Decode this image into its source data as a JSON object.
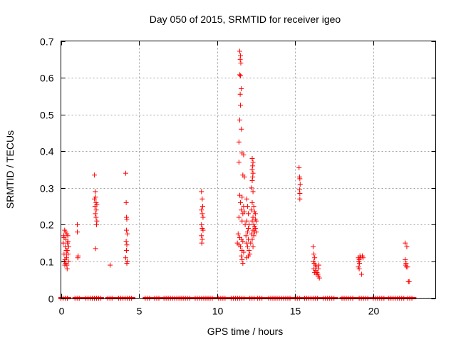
{
  "chart_data": {
    "type": "scatter",
    "title": "Day 050 of 2015, SRMTID for receiver igeo",
    "xlabel": "GPS time / hours",
    "ylabel": "SRMTID / TECUs",
    "xlim": [
      0,
      24
    ],
    "ylim": [
      0,
      0.7
    ],
    "xticks": [
      0,
      5,
      10,
      15,
      20
    ],
    "xtick_labels": [
      "0",
      "5",
      "10",
      "15",
      "20"
    ],
    "yticks": [
      0,
      0.1,
      0.2,
      0.3,
      0.4,
      0.5,
      0.6,
      0.7
    ],
    "ytick_labels": [
      "0",
      "0.1",
      "0.2",
      "0.3",
      "0.4",
      "0.5",
      "0.6",
      "0.7"
    ],
    "grid": true,
    "marker": "+",
    "marker_color": "#ff0000",
    "series": [
      {
        "name": "SRMTID",
        "points": [
          [
            0.15,
            0.15
          ],
          [
            0.18,
            0.17
          ],
          [
            0.2,
            0.12
          ],
          [
            0.22,
            0.1
          ],
          [
            0.25,
            0.09
          ],
          [
            0.28,
            0.14
          ],
          [
            0.3,
            0.18
          ],
          [
            0.32,
            0.16
          ],
          [
            0.34,
            0.13
          ],
          [
            0.36,
            0.11
          ],
          [
            0.38,
            0.09
          ],
          [
            0.4,
            0.08
          ],
          [
            0.42,
            0.15
          ],
          [
            0.44,
            0.17
          ],
          [
            0.46,
            0.12
          ],
          [
            0.48,
            0.1
          ],
          [
            0.5,
            0.14
          ],
          [
            0.24,
            0.185
          ],
          [
            0.2,
            0.165
          ],
          [
            0.26,
            0.105
          ],
          [
            0.3,
            0.095
          ],
          [
            0.35,
            0.12
          ],
          [
            0.4,
            0.13
          ],
          [
            0.45,
            0.155
          ],
          [
            0.38,
            0.175
          ],
          [
            1.05,
            0.2
          ],
          [
            1.05,
            0.18
          ],
          [
            1.08,
            0.11
          ],
          [
            1.1,
            0.115
          ],
          [
            2.15,
            0.335
          ],
          [
            2.2,
            0.29
          ],
          [
            2.22,
            0.275
          ],
          [
            2.25,
            0.26
          ],
          [
            2.18,
            0.25
          ],
          [
            2.2,
            0.23
          ],
          [
            2.25,
            0.22
          ],
          [
            2.3,
            0.21
          ],
          [
            2.28,
            0.2
          ],
          [
            2.22,
            0.135
          ],
          [
            2.15,
            0.27
          ],
          [
            2.3,
            0.255
          ],
          [
            2.26,
            0.24
          ],
          [
            3.15,
            0.09
          ],
          [
            4.15,
            0.34
          ],
          [
            4.18,
            0.26
          ],
          [
            4.2,
            0.22
          ],
          [
            4.22,
            0.215
          ],
          [
            4.2,
            0.185
          ],
          [
            4.25,
            0.175
          ],
          [
            4.18,
            0.155
          ],
          [
            4.22,
            0.145
          ],
          [
            4.2,
            0.13
          ],
          [
            4.15,
            0.11
          ],
          [
            4.25,
            0.1
          ],
          [
            4.22,
            0.095
          ],
          [
            9.0,
            0.29
          ],
          [
            9.05,
            0.27
          ],
          [
            9.08,
            0.25
          ],
          [
            9.0,
            0.24
          ],
          [
            9.05,
            0.23
          ],
          [
            9.1,
            0.22
          ],
          [
            9.0,
            0.2
          ],
          [
            9.05,
            0.19
          ],
          [
            9.1,
            0.185
          ],
          [
            9.0,
            0.17
          ],
          [
            9.05,
            0.16
          ],
          [
            9.02,
            0.15
          ],
          [
            11.45,
            0.672
          ],
          [
            11.5,
            0.66
          ],
          [
            11.48,
            0.65
          ],
          [
            11.52,
            0.64
          ],
          [
            11.45,
            0.608
          ],
          [
            11.5,
            0.605
          ],
          [
            11.55,
            0.57
          ],
          [
            11.48,
            0.555
          ],
          [
            11.5,
            0.525
          ],
          [
            11.45,
            0.485
          ],
          [
            11.55,
            0.46
          ],
          [
            11.4,
            0.425
          ],
          [
            11.6,
            0.395
          ],
          [
            11.7,
            0.39
          ],
          [
            11.4,
            0.37
          ],
          [
            11.65,
            0.335
          ],
          [
            11.75,
            0.33
          ],
          [
            11.45,
            0.28
          ],
          [
            11.6,
            0.275
          ],
          [
            11.5,
            0.26
          ],
          [
            11.7,
            0.25
          ],
          [
            11.55,
            0.24
          ],
          [
            11.65,
            0.23
          ],
          [
            11.75,
            0.235
          ],
          [
            11.4,
            0.22
          ],
          [
            11.6,
            0.21
          ],
          [
            11.8,
            0.2
          ],
          [
            11.35,
            0.175
          ],
          [
            11.45,
            0.165
          ],
          [
            11.55,
            0.16
          ],
          [
            11.65,
            0.155
          ],
          [
            11.3,
            0.15
          ],
          [
            11.4,
            0.145
          ],
          [
            11.5,
            0.14
          ],
          [
            11.6,
            0.13
          ],
          [
            11.7,
            0.125
          ],
          [
            11.55,
            0.115
          ],
          [
            11.6,
            0.105
          ],
          [
            11.65,
            0.095
          ],
          [
            11.9,
            0.27
          ],
          [
            11.95,
            0.25
          ],
          [
            12.0,
            0.23
          ],
          [
            11.9,
            0.21
          ],
          [
            12.05,
            0.2
          ],
          [
            12.0,
            0.19
          ],
          [
            11.95,
            0.18
          ],
          [
            11.85,
            0.17
          ],
          [
            12.0,
            0.16
          ],
          [
            11.9,
            0.15
          ],
          [
            11.95,
            0.14
          ],
          [
            12.05,
            0.13
          ],
          [
            12.1,
            0.12
          ],
          [
            12.0,
            0.115
          ],
          [
            11.9,
            0.11
          ],
          [
            12.25,
            0.38
          ],
          [
            12.3,
            0.37
          ],
          [
            12.28,
            0.36
          ],
          [
            12.25,
            0.35
          ],
          [
            12.3,
            0.34
          ],
          [
            12.28,
            0.33
          ],
          [
            12.25,
            0.32
          ],
          [
            12.2,
            0.3
          ],
          [
            12.3,
            0.29
          ],
          [
            12.25,
            0.26
          ],
          [
            12.35,
            0.25
          ],
          [
            12.2,
            0.24
          ],
          [
            12.4,
            0.235
          ],
          [
            12.3,
            0.22
          ],
          [
            12.45,
            0.215
          ],
          [
            12.25,
            0.21
          ],
          [
            12.35,
            0.2
          ],
          [
            12.45,
            0.19
          ],
          [
            12.3,
            0.185
          ],
          [
            12.4,
            0.18
          ],
          [
            12.5,
            0.18
          ],
          [
            12.2,
            0.175
          ],
          [
            12.35,
            0.17
          ],
          [
            12.25,
            0.16
          ],
          [
            12.15,
            0.15
          ],
          [
            12.3,
            0.14
          ],
          [
            12.45,
            0.23
          ],
          [
            12.5,
            0.21
          ],
          [
            12.4,
            0.195
          ],
          [
            15.25,
            0.355
          ],
          [
            15.28,
            0.33
          ],
          [
            15.3,
            0.325
          ],
          [
            15.32,
            0.31
          ],
          [
            15.28,
            0.295
          ],
          [
            15.3,
            0.285
          ],
          [
            15.3,
            0.27
          ],
          [
            16.15,
            0.14
          ],
          [
            16.2,
            0.12
          ],
          [
            16.25,
            0.11
          ],
          [
            16.18,
            0.1
          ],
          [
            16.22,
            0.095
          ],
          [
            16.3,
            0.09
          ],
          [
            16.35,
            0.085
          ],
          [
            16.2,
            0.08
          ],
          [
            16.3,
            0.075
          ],
          [
            16.4,
            0.07
          ],
          [
            16.25,
            0.07
          ],
          [
            16.45,
            0.065
          ],
          [
            16.5,
            0.06
          ],
          [
            16.55,
            0.055
          ],
          [
            16.35,
            0.065
          ],
          [
            16.48,
            0.08
          ],
          [
            16.52,
            0.09
          ],
          [
            19.05,
            0.11
          ],
          [
            19.1,
            0.105
          ],
          [
            19.08,
            0.1
          ],
          [
            19.12,
            0.095
          ],
          [
            19.15,
            0.115
          ],
          [
            19.2,
            0.11
          ],
          [
            19.05,
            0.085
          ],
          [
            19.1,
            0.08
          ],
          [
            19.3,
            0.115
          ],
          [
            19.35,
            0.11
          ],
          [
            19.25,
            0.065
          ],
          [
            22.05,
            0.15
          ],
          [
            22.15,
            0.14
          ],
          [
            22.05,
            0.105
          ],
          [
            22.1,
            0.095
          ],
          [
            22.08,
            0.09
          ],
          [
            22.12,
            0.085
          ],
          [
            22.2,
            0.085
          ],
          [
            22.25,
            0.045
          ],
          [
            22.3,
            0.045
          ]
        ],
        "zero_segments": [
          [
            0.0,
            0.5
          ],
          [
            0.9,
            1.3
          ],
          [
            1.6,
            2.6
          ],
          [
            3.0,
            3.4
          ],
          [
            3.7,
            4.6
          ],
          [
            5.4,
            5.8
          ],
          [
            6.0,
            6.3
          ],
          [
            6.6,
            8.3
          ],
          [
            8.6,
            9.8
          ],
          [
            10.1,
            10.6
          ],
          [
            10.9,
            11.8
          ],
          [
            12.1,
            12.4
          ],
          [
            12.6,
            13.0
          ],
          [
            13.3,
            14.8
          ],
          [
            15.0,
            15.3
          ],
          [
            15.6,
            16.5
          ],
          [
            16.8,
            17.6
          ],
          [
            18.0,
            18.8
          ],
          [
            19.1,
            19.7
          ],
          [
            20.0,
            20.8
          ],
          [
            21.0,
            22.0
          ],
          [
            22.2,
            22.6
          ]
        ]
      }
    ]
  }
}
